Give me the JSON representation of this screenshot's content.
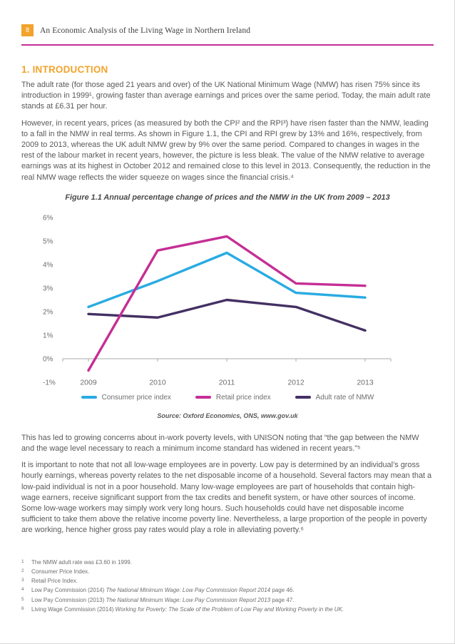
{
  "header": {
    "page_number": "8",
    "title": "An Economic Analysis of the Living Wage in Northern Ireland"
  },
  "colors": {
    "accent_orange": "#F2A32B",
    "accent_magenta": "#C52E95",
    "body_text": "#58595B",
    "footnote_text": "#6D6E71",
    "cpi_line": "#29ABE2",
    "rpi_line": "#C52E95",
    "nmw_line": "#443063"
  },
  "section": {
    "heading": "1. INTRODUCTION"
  },
  "paragraphs": {
    "p1": "The adult rate (for those aged 21 years and over) of the UK National Minimum Wage (NMW) has risen 75% since its introduction in 1999¹, growing faster than average earnings and prices over the same period. Today, the main adult rate stands at £6.31 per hour.",
    "p2": "However, in recent years, prices (as measured by both the CPI² and the RPI³) have risen faster than the NMW, leading to a fall in the NMW in real terms. As shown in Figure 1.1, the CPI and RPI grew by 13% and 16%, respectively, from 2009 to 2013, whereas the UK adult NMW grew by 9% over the same period. Compared to changes in wages in the rest of the labour market in recent years, however, the picture is less bleak. The value of the NMW relative to average earnings was at its highest in October 2012 and remained close to this level in 2013. Consequently, the reduction in the real NMW wage reflects the wider squeeze on wages since the financial crisis.⁴",
    "p3": "This has led to growing concerns about in-work poverty levels, with UNISON noting that “the gap between the NMW and the wage level necessary to reach a minimum income standard has widened in recent years.”⁵",
    "p4": "It is important to note that not all low-wage employees are in poverty. Low pay is determined by an individual’s gross hourly earnings, whereas poverty relates to the net disposable income of a household. Several factors may mean that a low-paid individual is not in a poor household. Many low-wage employees are part of households that contain high-wage earners, receive significant support from the tax credits and benefit system, or have other sources of income. Some low-wage workers may simply work very long hours. Such households could have net disposable income sufficient to take them above the relative income poverty line. Nevertheless, a large proportion of the people in poverty are working, hence higher gross pay rates would play a role in alleviating poverty.⁶"
  },
  "chart_data": {
    "type": "line",
    "title": "Figure 1.1 Annual percentage change of prices and the NMW in the UK from 2009 – 2013",
    "source": "Source: Oxford Economics, ONS, www.gov.uk",
    "x": [
      "2009",
      "2010",
      "2011",
      "2012",
      "2013"
    ],
    "series": [
      {
        "name": "Consumer price index",
        "color": "#29ABE2",
        "values": [
          2.2,
          3.3,
          4.5,
          2.8,
          2.6
        ]
      },
      {
        "name": "Retail price index",
        "color": "#C52E95",
        "values": [
          -0.5,
          4.6,
          5.2,
          3.2,
          3.1
        ]
      },
      {
        "name": "Adult rate of NMW",
        "color": "#443063",
        "values": [
          1.9,
          1.75,
          2.5,
          2.2,
          1.2
        ]
      }
    ],
    "ylim": [
      -1,
      6
    ],
    "ytick_step": 1,
    "ytick_format": "percent",
    "grid": false,
    "legend_position": "bottom"
  },
  "footnotes": [
    {
      "num": "1",
      "segments": [
        {
          "t": "The NMW adult rate was £3.60 in 1999.",
          "i": false
        }
      ]
    },
    {
      "num": "2",
      "segments": [
        {
          "t": "Consumer Price Index.",
          "i": false
        }
      ]
    },
    {
      "num": "3",
      "segments": [
        {
          "t": "Retail Price Index.",
          "i": false
        }
      ]
    },
    {
      "num": "4",
      "segments": [
        {
          "t": "Low Pay Commission (2014) ",
          "i": false
        },
        {
          "t": "The National Minimum Wage: Low Pay Commission Report 2014",
          "i": true
        },
        {
          "t": " page 46.",
          "i": false
        }
      ]
    },
    {
      "num": "5",
      "segments": [
        {
          "t": "Low Pay Commission (2013) ",
          "i": false
        },
        {
          "t": "The National Minimum Wage: Low Pay Commission Report 2013",
          "i": true
        },
        {
          "t": " page 47.",
          "i": false
        }
      ]
    },
    {
      "num": "6",
      "segments": [
        {
          "t": "Living Wage Commission (2014) ",
          "i": false
        },
        {
          "t": "Working for Poverty: The Scale of the Problem of Low Pay and Working Poverty in the UK.",
          "i": true
        }
      ]
    }
  ]
}
